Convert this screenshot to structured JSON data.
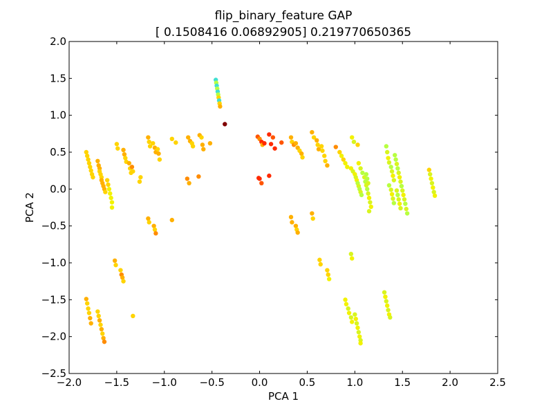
{
  "chart_data": {
    "type": "scatter",
    "title": "flip_binary_feature GAP",
    "subtitle": "[ 0.1508416   0.06892905] 0.219770650365",
    "xlabel": "PCA 1",
    "ylabel": "PCA 2",
    "xlim": [
      -2.0,
      2.5
    ],
    "ylim": [
      -2.5,
      2.0
    ],
    "xticks": [
      "−2.0",
      "−1.5",
      "−1.0",
      "−0.5",
      "0.0",
      "0.5",
      "1.0",
      "1.5",
      "2.0",
      "2.5"
    ],
    "yticks": [
      "−2.5",
      "−2.0",
      "−1.5",
      "−1.0",
      "−0.5",
      "0.0",
      "0.5",
      "1.0",
      "1.5",
      "2.0"
    ],
    "grid": false,
    "legend": "none",
    "colors": {
      "dark_red": "#800000",
      "red": "#ff2a00",
      "orange_red": "#ff5500",
      "orange": "#ff8c00",
      "amber": "#ffb000",
      "gold": "#ffd400",
      "yellow": "#f2f200",
      "lime_yellow": "#d8f51f",
      "yellow_green": "#b7ff40",
      "cyan": "#40e0d0"
    },
    "points": [
      {
        "x": -1.82,
        "y": 0.5,
        "c": "gold"
      },
      {
        "x": -1.81,
        "y": 0.45,
        "c": "gold"
      },
      {
        "x": -1.8,
        "y": 0.4,
        "c": "gold"
      },
      {
        "x": -1.79,
        "y": 0.35,
        "c": "gold"
      },
      {
        "x": -1.78,
        "y": 0.3,
        "c": "gold"
      },
      {
        "x": -1.77,
        "y": 0.25,
        "c": "gold"
      },
      {
        "x": -1.76,
        "y": 0.2,
        "c": "gold"
      },
      {
        "x": -1.75,
        "y": 0.16,
        "c": "gold"
      },
      {
        "x": -1.7,
        "y": 0.38,
        "c": "amber"
      },
      {
        "x": -1.69,
        "y": 0.32,
        "c": "amber"
      },
      {
        "x": -1.68,
        "y": 0.28,
        "c": "amber"
      },
      {
        "x": -1.68,
        "y": 0.24,
        "c": "gold"
      },
      {
        "x": -1.67,
        "y": 0.2,
        "c": "gold"
      },
      {
        "x": -1.66,
        "y": 0.16,
        "c": "gold"
      },
      {
        "x": -1.66,
        "y": 0.12,
        "c": "amber"
      },
      {
        "x": -1.65,
        "y": 0.08,
        "c": "amber"
      },
      {
        "x": -1.64,
        "y": 0.04,
        "c": "amber"
      },
      {
        "x": -1.63,
        "y": 0.0,
        "c": "amber"
      },
      {
        "x": -1.62,
        "y": -0.04,
        "c": "gold"
      },
      {
        "x": -1.6,
        "y": 0.12,
        "c": "gold"
      },
      {
        "x": -1.59,
        "y": 0.06,
        "c": "gold"
      },
      {
        "x": -1.58,
        "y": 0.0,
        "c": "yellow"
      },
      {
        "x": -1.57,
        "y": -0.06,
        "c": "yellow"
      },
      {
        "x": -1.56,
        "y": -0.12,
        "c": "yellow"
      },
      {
        "x": -1.55,
        "y": -0.18,
        "c": "yellow"
      },
      {
        "x": -1.55,
        "y": -0.25,
        "c": "yellow"
      },
      {
        "x": -1.5,
        "y": 0.61,
        "c": "gold"
      },
      {
        "x": -1.49,
        "y": 0.55,
        "c": "gold"
      },
      {
        "x": -1.43,
        "y": 0.53,
        "c": "amber"
      },
      {
        "x": -1.42,
        "y": 0.47,
        "c": "amber"
      },
      {
        "x": -1.41,
        "y": 0.42,
        "c": "gold"
      },
      {
        "x": -1.4,
        "y": 0.37,
        "c": "gold"
      },
      {
        "x": -1.37,
        "y": 0.35,
        "c": "amber"
      },
      {
        "x": -1.36,
        "y": 0.28,
        "c": "gold"
      },
      {
        "x": -1.35,
        "y": 0.22,
        "c": "gold"
      },
      {
        "x": -1.34,
        "y": 0.3,
        "c": "orange"
      },
      {
        "x": -1.33,
        "y": 0.24,
        "c": "gold"
      },
      {
        "x": -1.25,
        "y": 0.16,
        "c": "gold"
      },
      {
        "x": -1.26,
        "y": 0.1,
        "c": "gold"
      },
      {
        "x": -1.17,
        "y": 0.7,
        "c": "amber"
      },
      {
        "x": -1.16,
        "y": 0.64,
        "c": "gold"
      },
      {
        "x": -1.15,
        "y": 0.58,
        "c": "gold"
      },
      {
        "x": -1.12,
        "y": 0.62,
        "c": "gold"
      },
      {
        "x": -1.1,
        "y": 0.56,
        "c": "amber"
      },
      {
        "x": -1.09,
        "y": 0.5,
        "c": "amber"
      },
      {
        "x": -1.07,
        "y": 0.54,
        "c": "gold"
      },
      {
        "x": -1.06,
        "y": 0.48,
        "c": "amber"
      },
      {
        "x": -1.05,
        "y": 0.4,
        "c": "gold"
      },
      {
        "x": -0.92,
        "y": 0.68,
        "c": "gold"
      },
      {
        "x": -0.88,
        "y": 0.63,
        "c": "gold"
      },
      {
        "x": -0.75,
        "y": 0.7,
        "c": "amber"
      },
      {
        "x": -0.73,
        "y": 0.65,
        "c": "amber"
      },
      {
        "x": -0.71,
        "y": 0.62,
        "c": "gold"
      },
      {
        "x": -0.7,
        "y": 0.58,
        "c": "gold"
      },
      {
        "x": -0.63,
        "y": 0.73,
        "c": "amber"
      },
      {
        "x": -0.61,
        "y": 0.7,
        "c": "gold"
      },
      {
        "x": -0.6,
        "y": 0.6,
        "c": "amber"
      },
      {
        "x": -0.59,
        "y": 0.54,
        "c": "amber"
      },
      {
        "x": -0.52,
        "y": 0.62,
        "c": "amber"
      },
      {
        "x": -0.76,
        "y": 0.14,
        "c": "orange"
      },
      {
        "x": -0.74,
        "y": 0.08,
        "c": "amber"
      },
      {
        "x": -0.64,
        "y": 0.17,
        "c": "orange"
      },
      {
        "x": -0.46,
        "y": 1.48,
        "c": "cyan"
      },
      {
        "x": -0.455,
        "y": 1.44,
        "c": "yellow_green"
      },
      {
        "x": -0.45,
        "y": 1.4,
        "c": "cyan"
      },
      {
        "x": -0.445,
        "y": 1.36,
        "c": "yellow_green"
      },
      {
        "x": -0.44,
        "y": 1.32,
        "c": "cyan"
      },
      {
        "x": -0.435,
        "y": 1.28,
        "c": "yellow_green"
      },
      {
        "x": -0.43,
        "y": 1.24,
        "c": "gold"
      },
      {
        "x": -0.425,
        "y": 1.2,
        "c": "cyan"
      },
      {
        "x": -0.42,
        "y": 1.16,
        "c": "gold"
      },
      {
        "x": -0.415,
        "y": 1.12,
        "c": "amber"
      },
      {
        "x": -0.365,
        "y": 0.88,
        "c": "dark_red"
      },
      {
        "x": -0.02,
        "y": 0.71,
        "c": "orange_red"
      },
      {
        "x": 0.0,
        "y": 0.68,
        "c": "orange"
      },
      {
        "x": 0.02,
        "y": 0.64,
        "c": "red"
      },
      {
        "x": 0.03,
        "y": 0.6,
        "c": "amber"
      },
      {
        "x": 0.05,
        "y": 0.62,
        "c": "red"
      },
      {
        "x": 0.1,
        "y": 0.74,
        "c": "red"
      },
      {
        "x": 0.12,
        "y": 0.61,
        "c": "red"
      },
      {
        "x": 0.14,
        "y": 0.7,
        "c": "orange_red"
      },
      {
        "x": 0.16,
        "y": 0.55,
        "c": "red"
      },
      {
        "x": 0.23,
        "y": 0.63,
        "c": "orange_red"
      },
      {
        "x": -0.01,
        "y": 0.15,
        "c": "red"
      },
      {
        "x": 0.0,
        "y": 0.14,
        "c": "red"
      },
      {
        "x": 0.02,
        "y": 0.08,
        "c": "orange_red"
      },
      {
        "x": 0.1,
        "y": 0.18,
        "c": "red"
      },
      {
        "x": 0.33,
        "y": 0.7,
        "c": "amber"
      },
      {
        "x": 0.34,
        "y": 0.64,
        "c": "gold"
      },
      {
        "x": 0.36,
        "y": 0.6,
        "c": "orange"
      },
      {
        "x": 0.38,
        "y": 0.62,
        "c": "amber"
      },
      {
        "x": 0.4,
        "y": 0.56,
        "c": "amber"
      },
      {
        "x": 0.42,
        "y": 0.52,
        "c": "gold"
      },
      {
        "x": 0.44,
        "y": 0.48,
        "c": "amber"
      },
      {
        "x": 0.45,
        "y": 0.43,
        "c": "gold"
      },
      {
        "x": 0.55,
        "y": 0.77,
        "c": "amber"
      },
      {
        "x": 0.57,
        "y": 0.7,
        "c": "gold"
      },
      {
        "x": 0.6,
        "y": 0.66,
        "c": "amber"
      },
      {
        "x": 0.61,
        "y": 0.6,
        "c": "gold"
      },
      {
        "x": 0.62,
        "y": 0.54,
        "c": "amber"
      },
      {
        "x": 0.65,
        "y": 0.58,
        "c": "gold"
      },
      {
        "x": 0.66,
        "y": 0.52,
        "c": "gold"
      },
      {
        "x": 0.68,
        "y": 0.45,
        "c": "gold"
      },
      {
        "x": 0.69,
        "y": 0.38,
        "c": "gold"
      },
      {
        "x": 0.71,
        "y": 0.32,
        "c": "amber"
      },
      {
        "x": 0.8,
        "y": 0.57,
        "c": "orange"
      },
      {
        "x": 0.84,
        "y": 0.5,
        "c": "gold"
      },
      {
        "x": 0.86,
        "y": 0.45,
        "c": "yellow"
      },
      {
        "x": 0.88,
        "y": 0.4,
        "c": "gold"
      },
      {
        "x": 0.9,
        "y": 0.35,
        "c": "yellow"
      },
      {
        "x": 0.92,
        "y": 0.3,
        "c": "yellow"
      },
      {
        "x": 0.97,
        "y": 0.7,
        "c": "yellow"
      },
      {
        "x": 0.99,
        "y": 0.64,
        "c": "lime_yellow"
      },
      {
        "x": 0.96,
        "y": 0.28,
        "c": "yellow"
      },
      {
        "x": 0.98,
        "y": 0.24,
        "c": "lime_yellow"
      },
      {
        "x": 1.0,
        "y": 0.2,
        "c": "yellow"
      },
      {
        "x": 1.01,
        "y": 0.16,
        "c": "lime_yellow"
      },
      {
        "x": 1.02,
        "y": 0.12,
        "c": "yellow"
      },
      {
        "x": 1.03,
        "y": 0.08,
        "c": "yellow_green"
      },
      {
        "x": 1.04,
        "y": 0.04,
        "c": "lime_yellow"
      },
      {
        "x": 1.05,
        "y": 0.0,
        "c": "yellow_green"
      },
      {
        "x": 1.06,
        "y": -0.04,
        "c": "lime_yellow"
      },
      {
        "x": 1.07,
        "y": -0.08,
        "c": "yellow_green"
      },
      {
        "x": 1.03,
        "y": 0.6,
        "c": "gold"
      },
      {
        "x": 1.04,
        "y": 0.35,
        "c": "yellow"
      },
      {
        "x": 1.06,
        "y": 0.28,
        "c": "lime_yellow"
      },
      {
        "x": 1.08,
        "y": 0.22,
        "c": "yellow_green"
      },
      {
        "x": 1.1,
        "y": 0.16,
        "c": "lime_yellow"
      },
      {
        "x": 1.11,
        "y": 0.1,
        "c": "yellow_green"
      },
      {
        "x": 1.12,
        "y": 0.05,
        "c": "lime_yellow"
      },
      {
        "x": 1.13,
        "y": 0.0,
        "c": "yellow_green"
      },
      {
        "x": 1.14,
        "y": -0.06,
        "c": "lime_yellow"
      },
      {
        "x": 1.15,
        "y": -0.12,
        "c": "yellow"
      },
      {
        "x": 1.16,
        "y": -0.18,
        "c": "lime_yellow"
      },
      {
        "x": 1.17,
        "y": -0.24,
        "c": "yellow"
      },
      {
        "x": 1.15,
        "y": -0.3,
        "c": "lime_yellow"
      },
      {
        "x": 1.12,
        "y": 0.2,
        "c": "yellow_green"
      },
      {
        "x": 1.13,
        "y": 0.14,
        "c": "yellow_green"
      },
      {
        "x": 1.14,
        "y": 0.08,
        "c": "lime_yellow"
      },
      {
        "x": 1.33,
        "y": 0.58,
        "c": "yellow_green"
      },
      {
        "x": 1.34,
        "y": 0.5,
        "c": "lime_yellow"
      },
      {
        "x": 1.35,
        "y": 0.42,
        "c": "yellow"
      },
      {
        "x": 1.36,
        "y": 0.36,
        "c": "lime_yellow"
      },
      {
        "x": 1.38,
        "y": 0.3,
        "c": "yellow_green"
      },
      {
        "x": 1.39,
        "y": 0.24,
        "c": "lime_yellow"
      },
      {
        "x": 1.4,
        "y": 0.18,
        "c": "yellow"
      },
      {
        "x": 1.41,
        "y": 0.12,
        "c": "lime_yellow"
      },
      {
        "x": 1.42,
        "y": 0.46,
        "c": "yellow_green"
      },
      {
        "x": 1.43,
        "y": 0.4,
        "c": "yellow_green"
      },
      {
        "x": 1.44,
        "y": 0.34,
        "c": "lime_yellow"
      },
      {
        "x": 1.45,
        "y": 0.28,
        "c": "yellow_green"
      },
      {
        "x": 1.46,
        "y": 0.22,
        "c": "lime_yellow"
      },
      {
        "x": 1.47,
        "y": 0.16,
        "c": "yellow"
      },
      {
        "x": 1.48,
        "y": 0.1,
        "c": "lime_yellow"
      },
      {
        "x": 1.49,
        "y": 0.04,
        "c": "yellow_green"
      },
      {
        "x": 1.5,
        "y": -0.02,
        "c": "lime_yellow"
      },
      {
        "x": 1.51,
        "y": -0.08,
        "c": "yellow"
      },
      {
        "x": 1.52,
        "y": -0.14,
        "c": "lime_yellow"
      },
      {
        "x": 1.53,
        "y": -0.2,
        "c": "yellow_green"
      },
      {
        "x": 1.54,
        "y": -0.27,
        "c": "lime_yellow"
      },
      {
        "x": 1.55,
        "y": -0.33,
        "c": "yellow_green"
      },
      {
        "x": 1.44,
        "y": -0.02,
        "c": "lime_yellow"
      },
      {
        "x": 1.45,
        "y": -0.08,
        "c": "yellow_green"
      },
      {
        "x": 1.46,
        "y": -0.14,
        "c": "lime_yellow"
      },
      {
        "x": 1.47,
        "y": -0.2,
        "c": "yellow"
      },
      {
        "x": 1.48,
        "y": -0.26,
        "c": "lime_yellow"
      },
      {
        "x": 1.36,
        "y": 0.05,
        "c": "yellow_green"
      },
      {
        "x": 1.38,
        "y": -0.01,
        "c": "lime_yellow"
      },
      {
        "x": 1.39,
        "y": -0.07,
        "c": "yellow"
      },
      {
        "x": 1.4,
        "y": -0.13,
        "c": "lime_yellow"
      },
      {
        "x": 1.41,
        "y": -0.19,
        "c": "yellow_green"
      },
      {
        "x": 1.78,
        "y": 0.26,
        "c": "gold"
      },
      {
        "x": 1.79,
        "y": 0.2,
        "c": "lime_yellow"
      },
      {
        "x": 1.8,
        "y": 0.14,
        "c": "yellow"
      },
      {
        "x": 1.81,
        "y": 0.08,
        "c": "lime_yellow"
      },
      {
        "x": 1.82,
        "y": 0.02,
        "c": "yellow"
      },
      {
        "x": 1.83,
        "y": -0.04,
        "c": "lime_yellow"
      },
      {
        "x": 1.84,
        "y": -0.09,
        "c": "yellow"
      },
      {
        "x": -0.92,
        "y": -0.42,
        "c": "amber"
      },
      {
        "x": -1.17,
        "y": -0.4,
        "c": "amber"
      },
      {
        "x": -1.16,
        "y": -0.45,
        "c": "gold"
      },
      {
        "x": -1.11,
        "y": -0.5,
        "c": "amber"
      },
      {
        "x": -1.1,
        "y": -0.55,
        "c": "gold"
      },
      {
        "x": -1.09,
        "y": -0.6,
        "c": "orange"
      },
      {
        "x": 0.33,
        "y": -0.38,
        "c": "amber"
      },
      {
        "x": 0.34,
        "y": -0.45,
        "c": "amber"
      },
      {
        "x": 0.38,
        "y": -0.5,
        "c": "amber"
      },
      {
        "x": 0.39,
        "y": -0.55,
        "c": "gold"
      },
      {
        "x": 0.4,
        "y": -0.59,
        "c": "amber"
      },
      {
        "x": 0.55,
        "y": -0.33,
        "c": "amber"
      },
      {
        "x": 0.56,
        "y": -0.4,
        "c": "gold"
      },
      {
        "x": -1.52,
        "y": -0.97,
        "c": "amber"
      },
      {
        "x": -1.51,
        "y": -1.03,
        "c": "gold"
      },
      {
        "x": -1.46,
        "y": -1.1,
        "c": "gold"
      },
      {
        "x": -1.45,
        "y": -1.16,
        "c": "orange"
      },
      {
        "x": -1.44,
        "y": -1.2,
        "c": "amber"
      },
      {
        "x": -1.43,
        "y": -1.25,
        "c": "gold"
      },
      {
        "x": -1.33,
        "y": -1.72,
        "c": "gold"
      },
      {
        "x": 0.63,
        "y": -0.96,
        "c": "gold"
      },
      {
        "x": 0.64,
        "y": -1.02,
        "c": "gold"
      },
      {
        "x": 0.71,
        "y": -1.1,
        "c": "gold"
      },
      {
        "x": 0.72,
        "y": -1.16,
        "c": "gold"
      },
      {
        "x": 0.73,
        "y": -1.22,
        "c": "yellow"
      },
      {
        "x": 0.96,
        "y": -0.88,
        "c": "lime_yellow"
      },
      {
        "x": 0.97,
        "y": -0.94,
        "c": "yellow"
      },
      {
        "x": -1.82,
        "y": -1.49,
        "c": "amber"
      },
      {
        "x": -1.81,
        "y": -1.55,
        "c": "gold"
      },
      {
        "x": -1.8,
        "y": -1.62,
        "c": "gold"
      },
      {
        "x": -1.79,
        "y": -1.68,
        "c": "gold"
      },
      {
        "x": -1.78,
        "y": -1.75,
        "c": "amber"
      },
      {
        "x": -1.77,
        "y": -1.82,
        "c": "amber"
      },
      {
        "x": -1.7,
        "y": -1.66,
        "c": "gold"
      },
      {
        "x": -1.69,
        "y": -1.72,
        "c": "gold"
      },
      {
        "x": -1.68,
        "y": -1.78,
        "c": "amber"
      },
      {
        "x": -1.67,
        "y": -1.84,
        "c": "gold"
      },
      {
        "x": -1.66,
        "y": -1.9,
        "c": "amber"
      },
      {
        "x": -1.65,
        "y": -1.96,
        "c": "gold"
      },
      {
        "x": -1.64,
        "y": -2.02,
        "c": "amber"
      },
      {
        "x": -1.63,
        "y": -2.07,
        "c": "orange"
      },
      {
        "x": 0.9,
        "y": -1.5,
        "c": "yellow"
      },
      {
        "x": 0.91,
        "y": -1.56,
        "c": "yellow"
      },
      {
        "x": 0.93,
        "y": -1.62,
        "c": "lime_yellow"
      },
      {
        "x": 0.94,
        "y": -1.68,
        "c": "yellow"
      },
      {
        "x": 0.96,
        "y": -1.74,
        "c": "lime_yellow"
      },
      {
        "x": 0.97,
        "y": -1.8,
        "c": "yellow"
      },
      {
        "x": 1.0,
        "y": -1.7,
        "c": "lime_yellow"
      },
      {
        "x": 1.01,
        "y": -1.76,
        "c": "yellow"
      },
      {
        "x": 1.02,
        "y": -1.82,
        "c": "lime_yellow"
      },
      {
        "x": 1.03,
        "y": -1.88,
        "c": "yellow"
      },
      {
        "x": 1.04,
        "y": -1.94,
        "c": "lime_yellow"
      },
      {
        "x": 1.05,
        "y": -2.0,
        "c": "yellow"
      },
      {
        "x": 1.06,
        "y": -2.05,
        "c": "lime_yellow"
      },
      {
        "x": 1.06,
        "y": -2.09,
        "c": "yellow"
      },
      {
        "x": 1.31,
        "y": -1.4,
        "c": "lime_yellow"
      },
      {
        "x": 1.32,
        "y": -1.46,
        "c": "yellow"
      },
      {
        "x": 1.33,
        "y": -1.52,
        "c": "lime_yellow"
      },
      {
        "x": 1.34,
        "y": -1.58,
        "c": "yellow"
      },
      {
        "x": 1.35,
        "y": -1.64,
        "c": "lime_yellow"
      },
      {
        "x": 1.36,
        "y": -1.7,
        "c": "yellow"
      },
      {
        "x": 1.37,
        "y": -1.74,
        "c": "lime_yellow"
      }
    ]
  }
}
